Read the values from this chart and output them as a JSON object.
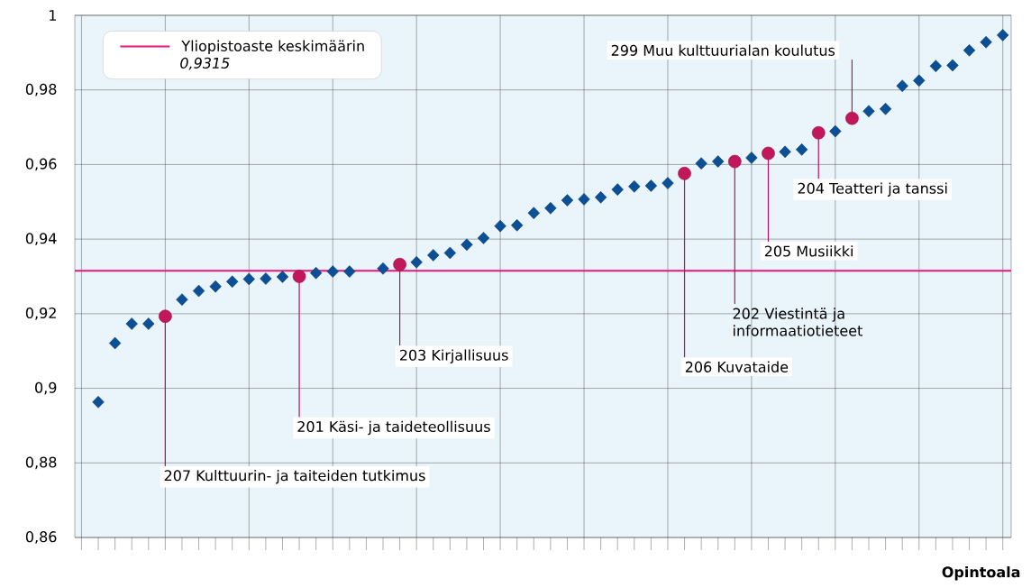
{
  "chart_data": {
    "type": "scatter",
    "xlabel": "Opintoala",
    "categories": [
      null,
      null,
      null,
      null,
      null,
      null,
      null,
      null,
      null,
      null,
      null,
      null,
      null,
      null,
      null,
      null,
      null,
      null,
      null,
      null,
      null,
      null,
      null,
      null,
      null,
      null,
      null,
      null,
      null,
      null,
      null,
      null,
      null,
      null,
      null,
      null,
      null,
      null,
      null,
      null,
      null,
      null,
      null,
      null,
      null,
      null,
      null,
      null,
      null,
      null,
      null,
      null,
      null,
      null,
      null,
      null
    ],
    "series": [
      {
        "color": "#0b4f97",
        "marker": "diamond",
        "values": [
          null,
          0.8963,
          0.9121,
          0.9173,
          0.9173,
          null,
          0.9238,
          0.9261,
          0.9273,
          0.9286,
          0.9293,
          0.9294,
          0.9299,
          null,
          0.9309,
          0.9313,
          0.9313,
          null,
          0.9321,
          null,
          0.9338,
          0.9357,
          0.9363,
          0.9385,
          0.9403,
          0.9435,
          0.9437,
          0.947,
          0.9483,
          0.9504,
          0.9507,
          0.9512,
          0.9533,
          0.9541,
          0.9543,
          0.955,
          null,
          0.9603,
          0.9608,
          null,
          0.9618,
          null,
          0.9634,
          0.964,
          null,
          0.9689,
          null,
          0.9743,
          0.9749,
          0.9811,
          0.9825,
          0.9864,
          0.9866,
          0.9906,
          0.9928,
          0.9947
        ]
      },
      {
        "color": "#c2185b",
        "marker": "circle",
        "values": [
          null,
          null,
          null,
          null,
          null,
          0.9193,
          null,
          null,
          null,
          null,
          null,
          null,
          null,
          0.93,
          null,
          null,
          null,
          null,
          null,
          0.9332,
          null,
          null,
          null,
          null,
          null,
          null,
          null,
          null,
          null,
          null,
          null,
          null,
          null,
          null,
          null,
          null,
          0.9576,
          null,
          null,
          0.9608,
          null,
          0.963,
          null,
          null,
          0.9685,
          null,
          0.9724,
          null,
          null,
          null,
          null,
          null,
          null,
          null,
          null,
          null
        ]
      }
    ],
    "ylim": [
      0.86,
      1
    ],
    "yticks": [
      {
        "value": 0.86,
        "label": "0,86"
      },
      {
        "value": 0.88,
        "label": "0,88"
      },
      {
        "value": 0.9,
        "label": "0,9"
      },
      {
        "value": 0.92,
        "label": "0,92"
      },
      {
        "value": 0.94,
        "label": "0,94"
      },
      {
        "value": 0.96,
        "label": "0,96"
      },
      {
        "value": 0.98,
        "label": "0,98"
      },
      {
        "value": 1,
        "label": "1"
      }
    ],
    "grid": true,
    "ref_lines": [
      {
        "axis": "y",
        "value": 0.9315,
        "label": "Yliopistoaste keskimäärin",
        "color": "#e5177e"
      }
    ],
    "annotations": [
      "207  Kulttuurin- ja taiteiden tutkimus",
      "201 Käsi- ja taideteollisuus",
      "203  Kirjallisuus",
      "206  Kuvataide",
      "202  Viestintä ja informaatiotieteet",
      "205  Musiikki",
      "204  Teatteri ja tanssi",
      "299  Muu kulttuurialan koulutus",
      "0,9315"
    ]
  }
}
